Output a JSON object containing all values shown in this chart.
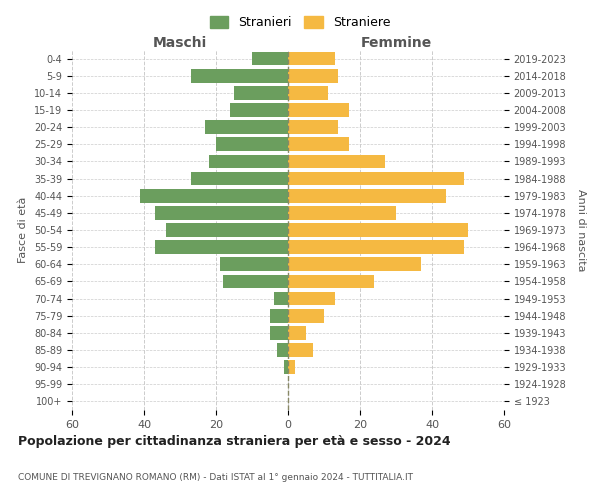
{
  "age_groups": [
    "100+",
    "95-99",
    "90-94",
    "85-89",
    "80-84",
    "75-79",
    "70-74",
    "65-69",
    "60-64",
    "55-59",
    "50-54",
    "45-49",
    "40-44",
    "35-39",
    "30-34",
    "25-29",
    "20-24",
    "15-19",
    "10-14",
    "5-9",
    "0-4"
  ],
  "birth_years": [
    "≤ 1923",
    "1924-1928",
    "1929-1933",
    "1934-1938",
    "1939-1943",
    "1944-1948",
    "1949-1953",
    "1954-1958",
    "1959-1963",
    "1964-1968",
    "1969-1973",
    "1974-1978",
    "1979-1983",
    "1984-1988",
    "1989-1993",
    "1994-1998",
    "1999-2003",
    "2004-2008",
    "2009-2013",
    "2014-2018",
    "2019-2023"
  ],
  "males": [
    0,
    0,
    1,
    3,
    5,
    5,
    4,
    18,
    19,
    37,
    34,
    37,
    41,
    27,
    22,
    20,
    23,
    16,
    15,
    27,
    10
  ],
  "females": [
    0,
    0,
    2,
    7,
    5,
    10,
    13,
    24,
    37,
    49,
    50,
    30,
    44,
    49,
    27,
    17,
    14,
    17,
    11,
    14,
    13
  ],
  "male_color": "#6b9e5e",
  "female_color": "#f5b942",
  "background_color": "#ffffff",
  "grid_color": "#cccccc",
  "title": "Popolazione per cittadinanza straniera per età e sesso - 2024",
  "subtitle": "COMUNE DI TREVIGNANO ROMANO (RM) - Dati ISTAT al 1° gennaio 2024 - TUTTITALIA.IT",
  "xlabel_left": "Maschi",
  "xlabel_right": "Femmine",
  "ylabel_left": "Fasce di età",
  "ylabel_right": "Anni di nascita",
  "legend_males": "Stranieri",
  "legend_females": "Straniere",
  "xlim": 60,
  "bar_height": 0.8
}
